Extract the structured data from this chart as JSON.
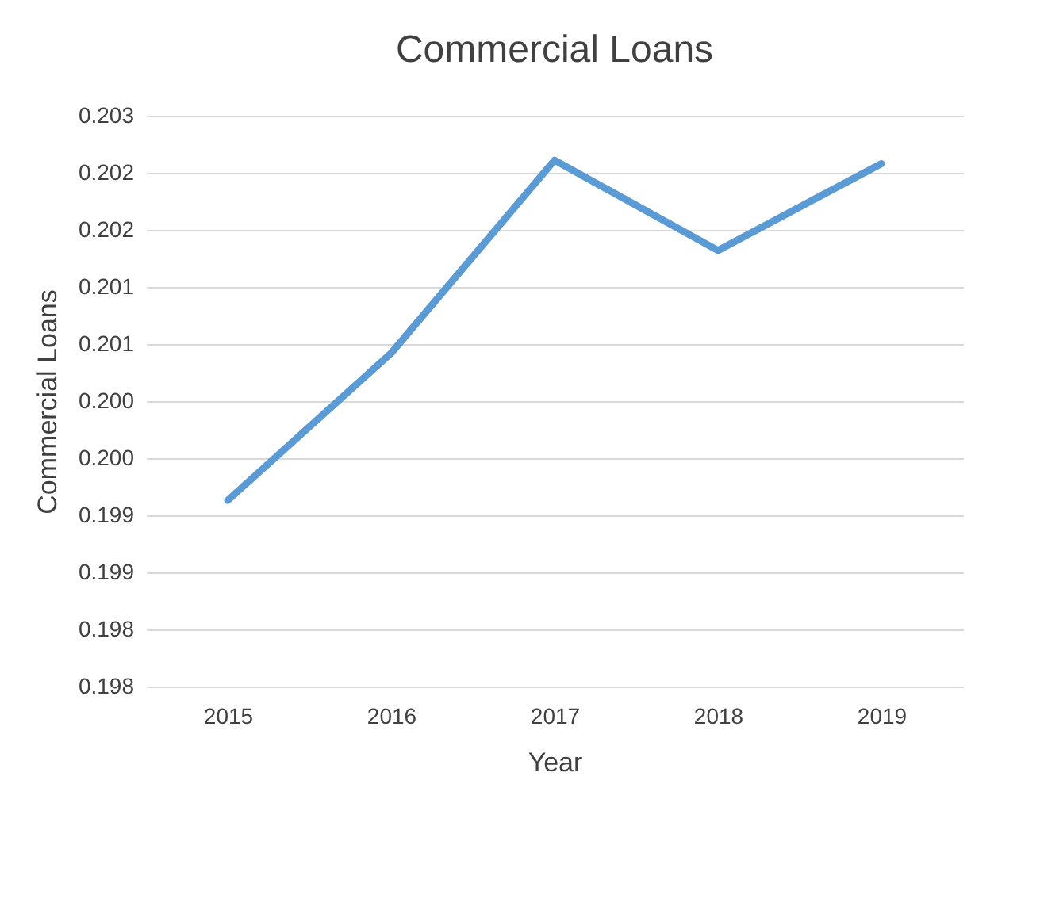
{
  "chart_data": {
    "type": "line",
    "title": "Commercial Loans",
    "xlabel": "Year",
    "ylabel": "Commercial Loans",
    "categories": [
      "2015",
      "2016",
      "2017",
      "2018",
      "2019"
    ],
    "series": [
      {
        "color": "#5b9bd5",
        "values": [
          0.19913,
          0.20042,
          0.20211,
          0.20132,
          0.20208
        ]
      }
    ],
    "ylim": [
      0.1975,
      0.2025
    ],
    "yticks": [
      {
        "value": 0.1975,
        "label": "0.198"
      },
      {
        "value": 0.198,
        "label": "0.198"
      },
      {
        "value": 0.1985,
        "label": "0.199"
      },
      {
        "value": 0.199,
        "label": "0.199"
      },
      {
        "value": 0.1995,
        "label": "0.200"
      },
      {
        "value": 0.2,
        "label": "0.200"
      },
      {
        "value": 0.2005,
        "label": "0.201"
      },
      {
        "value": 0.201,
        "label": "0.201"
      },
      {
        "value": 0.2015,
        "label": "0.202"
      },
      {
        "value": 0.202,
        "label": "0.202"
      },
      {
        "value": 0.2025,
        "label": "0.203"
      }
    ],
    "grid": "y",
    "marker": "none",
    "line_style": "solid"
  }
}
